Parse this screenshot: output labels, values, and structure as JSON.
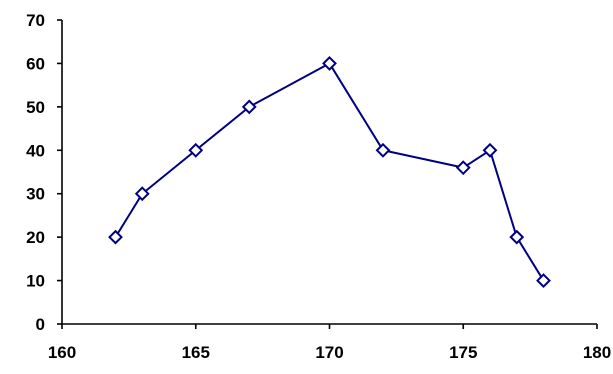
{
  "chart_data": {
    "type": "scatter",
    "title": "",
    "xlabel": "",
    "ylabel": "",
    "xlim": [
      160,
      180
    ],
    "ylim": [
      0,
      70
    ],
    "x_ticks": [
      160,
      165,
      170,
      175,
      180
    ],
    "y_ticks": [
      0,
      10,
      20,
      30,
      40,
      50,
      60,
      70
    ],
    "x_tick_labels": [
      "160",
      "165",
      "170",
      "175",
      "180"
    ],
    "y_tick_labels": [
      "0",
      "10",
      "20",
      "30",
      "40",
      "50",
      "60",
      "70"
    ],
    "grid": false,
    "legend": "none",
    "series": [
      {
        "marker": "diamond-open",
        "color": "#000080",
        "line": "straight",
        "x": [
          162,
          163,
          165,
          167,
          170,
          172,
          175,
          176,
          177,
          178
        ],
        "y": [
          20,
          30,
          40,
          50,
          60,
          40,
          36,
          40,
          20,
          10
        ]
      }
    ]
  }
}
